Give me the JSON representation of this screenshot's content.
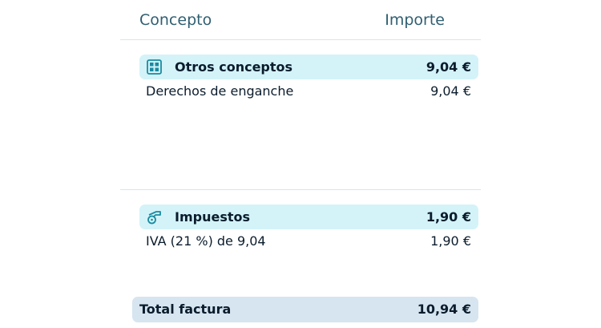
{
  "header": {
    "concept": "Concepto",
    "amount": "Importe"
  },
  "sections": [
    {
      "icon": "grid-icon",
      "title": "Otros conceptos",
      "total": "9,04 €",
      "items": [
        {
          "label": "Derechos de enganche",
          "amount": "9,04 €"
        }
      ]
    },
    {
      "icon": "tap-icon",
      "title": "Impuestos",
      "total": "1,90 €",
      "items": [
        {
          "label": "IVA (21 %) de 9,04",
          "amount": "1,90 €"
        }
      ]
    }
  ],
  "total": {
    "label": "Total factura",
    "amount": "10,94 €"
  },
  "colors": {
    "band": "#d3f3f9",
    "total_band": "#d6e5ef",
    "icon": "#1a8ba0"
  }
}
